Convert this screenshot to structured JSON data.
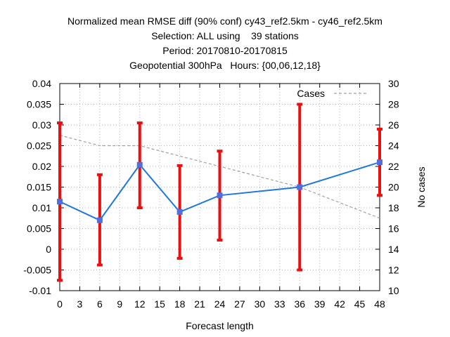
{
  "chart_data": {
    "type": "line",
    "title_lines": [
      "Normalized mean RMSE diff (90% conf) cy43_ref2.5km - cy46_ref2.5km",
      "Selection: ALL using    39 stations",
      "Period: 20170810-20170815",
      "Geopotential 300hPa   Hours: {00,06,12,18}"
    ],
    "xlabel": "Forecast length",
    "y2label": "No cases",
    "xlim": [
      0,
      48
    ],
    "ylim": [
      -0.01,
      0.04
    ],
    "y2lim": [
      10,
      30
    ],
    "x_ticks": [
      "0",
      "3",
      "6",
      "9",
      "12",
      "15",
      "18",
      "21",
      "24",
      "27",
      "30",
      "33",
      "36",
      "39",
      "42",
      "45",
      "48"
    ],
    "y_ticks": [
      "-0.01",
      "-0.005",
      "0",
      "0.005",
      "0.01",
      "0.015",
      "0.02",
      "0.025",
      "0.03",
      "0.035",
      "0.04"
    ],
    "y2_ticks": [
      "10",
      "12",
      "14",
      "16",
      "18",
      "20",
      "22",
      "24",
      "26",
      "28",
      "30"
    ],
    "grid": true,
    "legend_position": "top-right",
    "series": [
      {
        "kind": "mean",
        "color": "#1e78dc",
        "marker_color": "#4f6fdc",
        "x": [
          0,
          6,
          12,
          18,
          24,
          36,
          48
        ],
        "values": [
          0.0115,
          0.007,
          0.0204,
          0.009,
          0.013,
          0.015,
          0.021
        ],
        "err_low": [
          -0.0075,
          -0.0038,
          0.01,
          -0.0022,
          0.0022,
          -0.005,
          0.013
        ],
        "err_high": [
          0.0305,
          0.018,
          0.0305,
          0.0202,
          0.0237,
          0.035,
          0.029
        ],
        "err_color": "#e81010"
      },
      {
        "name": "Cases",
        "kind": "cases",
        "axis": "y2",
        "color": "#a0a0a0",
        "x": [
          0,
          6,
          12,
          18,
          24,
          36,
          48
        ],
        "values": [
          25,
          24,
          24,
          23,
          22,
          20,
          17
        ]
      }
    ]
  }
}
